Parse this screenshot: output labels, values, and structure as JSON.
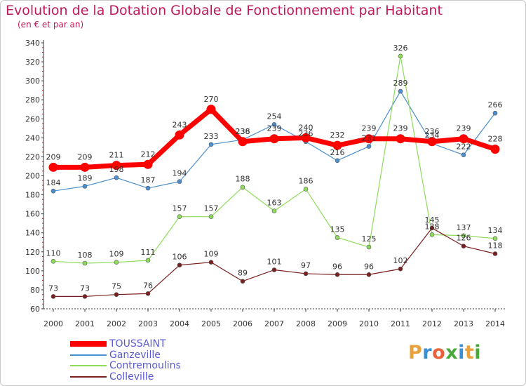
{
  "header": {
    "title": "Evolution de la Dotation Globale de Fonctionnement par Habitant",
    "subtitle": "(en € et par an)"
  },
  "logo": {
    "text": "Proxiti",
    "letters": [
      "P",
      "r",
      "o",
      "x",
      "i",
      "t",
      "i"
    ],
    "colors": [
      "#e8a23c",
      "#3a8ed6",
      "#e8623c",
      "#4aa83a",
      "#3a8ed6",
      "#e8a23c",
      "#4aa83a"
    ]
  },
  "chart_data": {
    "type": "line",
    "x": [
      "2000",
      "2001",
      "2002",
      "2003",
      "2004",
      "2005",
      "2006",
      "2007",
      "2008",
      "2009",
      "2010",
      "2011",
      "2012",
      "2013",
      "2014"
    ],
    "ylim": [
      60,
      340
    ],
    "yticks": [
      60,
      80,
      100,
      120,
      140,
      160,
      180,
      200,
      220,
      240,
      260,
      280,
      300,
      320,
      340
    ],
    "grid": false,
    "legend_position": "bottom-left",
    "series": [
      {
        "name": "TOUSSAINT",
        "color": "#ff0000",
        "emphasis": true,
        "values": [
          209,
          209,
          211,
          212,
          243,
          270,
          236,
          239,
          240,
          232,
          239,
          239,
          236,
          239,
          228
        ]
      },
      {
        "name": "Ganzeville",
        "color": "#4a8fd0",
        "emphasis": false,
        "values": [
          184,
          189,
          198,
          187,
          194,
          233,
          238,
          254,
          236,
          216,
          231,
          289,
          234,
          222,
          266
        ]
      },
      {
        "name": "Contremoulins",
        "color": "#8edc5a",
        "emphasis": false,
        "values": [
          110,
          108,
          109,
          111,
          157,
          157,
          188,
          163,
          186,
          135,
          125,
          326,
          138,
          137,
          134
        ]
      },
      {
        "name": "Colleville",
        "color": "#7a1e1e",
        "emphasis": false,
        "values": [
          73,
          73,
          75,
          76,
          106,
          109,
          89,
          101,
          97,
          96,
          96,
          102,
          145,
          126,
          118
        ]
      }
    ]
  }
}
